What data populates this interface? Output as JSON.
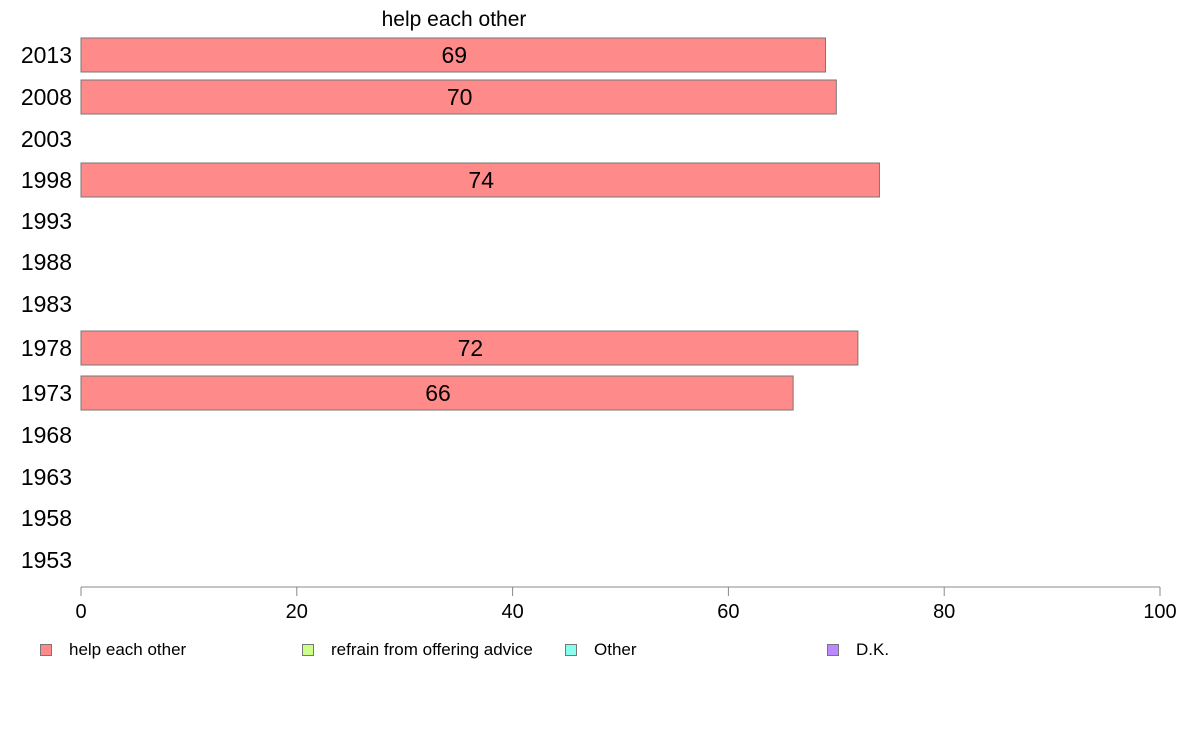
{
  "chart_data": {
    "type": "bar",
    "orientation": "horizontal",
    "title": "help each other",
    "categories": [
      "2013",
      "2008",
      "2003",
      "1998",
      "1993",
      "1988",
      "1983",
      "1978",
      "1973",
      "1968",
      "1963",
      "1958",
      "1953"
    ],
    "series": [
      {
        "name": "help each other",
        "color": "#ff8a8a",
        "values": [
          69,
          70,
          null,
          74,
          null,
          null,
          null,
          72,
          66,
          null,
          null,
          null,
          null
        ]
      },
      {
        "name": "refrain from offering advice",
        "color": "#ccff88",
        "values": [
          null,
          null,
          null,
          null,
          null,
          null,
          null,
          null,
          null,
          null,
          null,
          null,
          null
        ]
      },
      {
        "name": "Other",
        "color": "#88ffee",
        "values": [
          null,
          null,
          null,
          null,
          null,
          null,
          null,
          null,
          null,
          null,
          null,
          null,
          null
        ]
      },
      {
        "name": "D.K.",
        "color": "#bb88ff",
        "values": [
          null,
          null,
          null,
          null,
          null,
          null,
          null,
          null,
          null,
          null,
          null,
          null,
          null
        ]
      }
    ],
    "data_labels": [
      "69",
      "70",
      "",
      "74",
      "",
      "",
      "",
      "72",
      "66",
      "",
      "",
      "",
      ""
    ],
    "x_ticks": [
      "0",
      "20",
      "40",
      "60",
      "80",
      "100"
    ],
    "xlim": [
      0,
      100
    ],
    "grid": false,
    "legend_position": "bottom"
  }
}
